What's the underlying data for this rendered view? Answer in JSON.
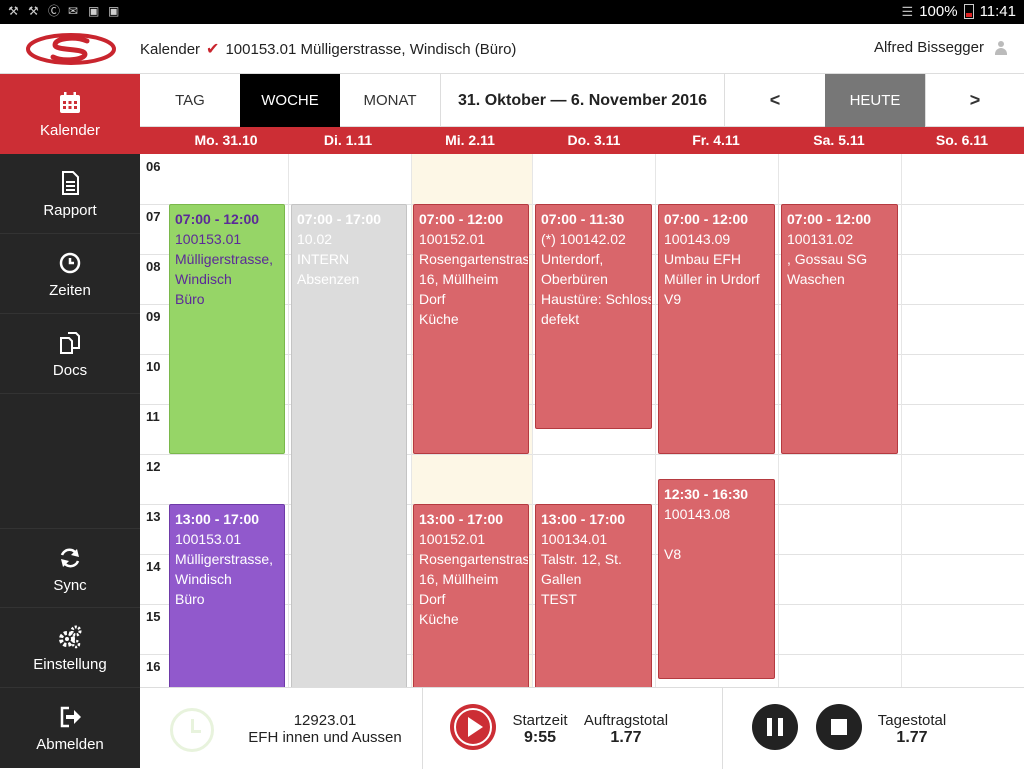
{
  "statusbar": {
    "icons": [
      "wrench-icon",
      "wrench-icon",
      "skype-icon",
      "mail-icon",
      "camera-icon",
      "bag-icon"
    ],
    "battery": "100%",
    "time": "11:41"
  },
  "header": {
    "section": "Kalender",
    "project": "100153.01 Mülligerstrasse, Windisch (Büro)",
    "user": "Alfred Bissegger"
  },
  "sidebar": {
    "items": [
      {
        "label": "Kalender",
        "icon": "calendar-icon",
        "active": true
      },
      {
        "label": "Rapport",
        "icon": "document-icon"
      },
      {
        "label": "Zeiten",
        "icon": "clock-icon"
      },
      {
        "label": "Docs",
        "icon": "copy-icon"
      },
      {
        "label": "Sync",
        "icon": "sync-icon"
      },
      {
        "label": "Einstellung",
        "icon": "gears-icon"
      },
      {
        "label": "Abmelden",
        "icon": "logout-icon"
      }
    ]
  },
  "toolbar": {
    "tab_day": "TAG",
    "tab_week": "WOCHE",
    "tab_month": "MONAT",
    "range": "31. Oktober — 6. November 2016",
    "prev": "<",
    "today": "HEUTE",
    "next": ">"
  },
  "days": [
    "Mo. 31.10",
    "Di. 1.11",
    "Mi. 2.11",
    "Do. 3.11",
    "Fr. 4.11",
    "Sa. 5.11",
    "So. 6.11"
  ],
  "hours": [
    "06",
    "07",
    "08",
    "09",
    "10",
    "11",
    "12",
    "13",
    "14",
    "15",
    "16"
  ],
  "events": {
    "mo_morning": {
      "time": "07:00 - 12:00",
      "lines": [
        "100153.01",
        "Mülligerstrasse,",
        "Windisch",
        "Büro"
      ]
    },
    "mo_afternoon": {
      "time": "13:00 - 17:00",
      "lines": [
        "100153.01",
        "Mülligerstrasse,",
        "Windisch",
        "Büro"
      ]
    },
    "di_allday": {
      "time": "07:00 - 17:00",
      "lines": [
        "10.02",
        "INTERN",
        "Absenzen"
      ]
    },
    "mi_morning": {
      "time": "07:00 - 12:00",
      "lines": [
        "100152.01",
        "Rosengartenstrasse",
        "16, Müllheim",
        "Dorf",
        "Küche"
      ]
    },
    "mi_afternoon": {
      "time": "13:00 - 17:00",
      "lines": [
        "100152.01",
        "Rosengartenstrasse",
        "16, Müllheim",
        "Dorf",
        "Küche"
      ]
    },
    "do_morning": {
      "time": "07:00 - 11:30",
      "lines": [
        "(*) 100142.02",
        "Unterdorf,",
        "Oberbüren",
        "Haustüre: Schloss",
        "defekt"
      ]
    },
    "do_afternoon": {
      "time": "13:00 - 17:00",
      "lines": [
        "100134.01",
        "Talstr. 12, St.",
        "Gallen",
        "TEST"
      ]
    },
    "fr_morning": {
      "time": "07:00 - 12:00",
      "lines": [
        "100143.09",
        "Umbau EFH",
        "Müller in Urdorf",
        "V9"
      ]
    },
    "fr_afternoon": {
      "time": "12:30 - 16:30",
      "lines": [
        "100143.08",
        "",
        "V8"
      ]
    },
    "sa_morning": {
      "time": "07:00 - 12:00",
      "lines": [
        "100131.02",
        ", Gossau SG",
        "Waschen"
      ]
    }
  },
  "footer": {
    "job_number": "12923.01",
    "job_title": "EFH innen und Aussen",
    "start_label": "Startzeit",
    "start_value": "9:55",
    "order_label": "Auftragstotal",
    "order_value": "1.77",
    "day_label": "Tagestotal",
    "day_value": "1.77"
  },
  "colors": {
    "brand_red": "#cc2e35",
    "event_red": "#d9666b",
    "event_green": "#96d567",
    "event_purple": "#9159cc",
    "event_gray": "#dcdcdc",
    "sidebar": "#262626"
  }
}
